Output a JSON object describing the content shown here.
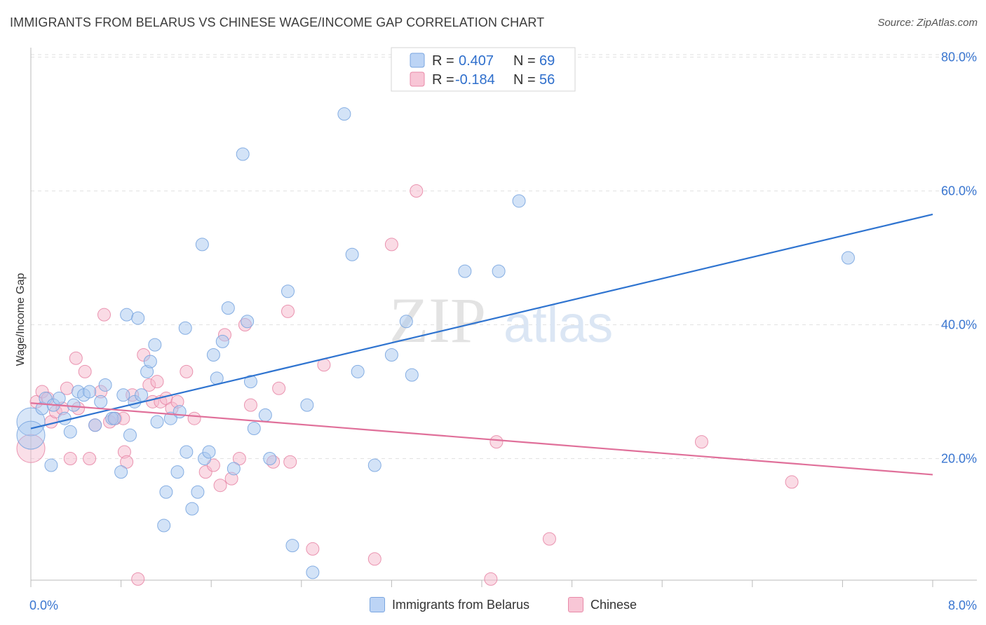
{
  "header": {
    "title": "IMMIGRANTS FROM BELARUS VS CHINESE WAGE/INCOME GAP CORRELATION CHART",
    "source": "Source: ZipAtlas.com"
  },
  "watermark": {
    "zip": "ZIP",
    "atlas": "atlas"
  },
  "legend": {
    "belarus": {
      "r_label": "R =",
      "r_value": "0.407",
      "n_label": "N =",
      "n_value": "69"
    },
    "chinese": {
      "r_label": "R =",
      "r_value": "-0.184",
      "n_label": "N =",
      "n_value": "56"
    }
  },
  "bottom_legend": {
    "belarus": "Immigrants from Belarus",
    "chinese": "Chinese"
  },
  "colors": {
    "belarus_fill": "#a8c8f0",
    "belarus_stroke": "#7aa6e0",
    "belarus_line": "#2f74d0",
    "chinese_fill": "#f5b8cc",
    "chinese_stroke": "#e88aa8",
    "chinese_line": "#e0709a",
    "tick_text": "#3a76d0"
  },
  "chart_data": {
    "type": "scatter",
    "title": "IMMIGRANTS FROM BELARUS VS CHINESE WAGE/INCOME GAP CORRELATION CHART",
    "xlabel": "",
    "ylabel": "Wage/Income Gap",
    "xlim": [
      0,
      8
    ],
    "ylim": [
      0,
      82
    ],
    "x_tick_labels": [
      "0.0%",
      "8.0%"
    ],
    "y_ticks": [
      20,
      40,
      60,
      80
    ],
    "y_tick_labels": [
      "20.0%",
      "40.0%",
      "60.0%",
      "80.0%"
    ],
    "grid": true,
    "series": [
      {
        "name": "Immigrants from Belarus",
        "trend": {
          "x": [
            0.0,
            8.0
          ],
          "y": [
            24.5,
            56.5
          ]
        },
        "points": [
          {
            "x": 0.0,
            "y": 25.5,
            "big": true
          },
          {
            "x": 0.0,
            "y": 23.5,
            "big": true
          },
          {
            "x": 0.1,
            "y": 27.5
          },
          {
            "x": 0.13,
            "y": 29.0
          },
          {
            "x": 0.18,
            "y": 19.0
          },
          {
            "x": 0.2,
            "y": 28.0
          },
          {
            "x": 0.25,
            "y": 29.0
          },
          {
            "x": 0.3,
            "y": 26.0
          },
          {
            "x": 0.35,
            "y": 24.0
          },
          {
            "x": 0.38,
            "y": 28.0
          },
          {
            "x": 0.42,
            "y": 30.0
          },
          {
            "x": 0.47,
            "y": 29.5
          },
          {
            "x": 0.52,
            "y": 30.0
          },
          {
            "x": 0.57,
            "y": 25.0
          },
          {
            "x": 0.62,
            "y": 28.5
          },
          {
            "x": 0.66,
            "y": 31.0
          },
          {
            "x": 0.72,
            "y": 26.0
          },
          {
            "x": 0.74,
            "y": 26.0
          },
          {
            "x": 0.8,
            "y": 18.0
          },
          {
            "x": 0.82,
            "y": 29.5
          },
          {
            "x": 0.85,
            "y": 41.5
          },
          {
            "x": 0.88,
            "y": 23.5
          },
          {
            "x": 0.92,
            "y": 28.5
          },
          {
            "x": 0.95,
            "y": 41.0
          },
          {
            "x": 0.98,
            "y": 29.5
          },
          {
            "x": 1.03,
            "y": 33.0
          },
          {
            "x": 1.06,
            "y": 34.5
          },
          {
            "x": 1.1,
            "y": 37.0
          },
          {
            "x": 1.12,
            "y": 25.5
          },
          {
            "x": 1.18,
            "y": 10.0
          },
          {
            "x": 1.2,
            "y": 15.0
          },
          {
            "x": 1.24,
            "y": 26.0
          },
          {
            "x": 1.3,
            "y": 18.0
          },
          {
            "x": 1.32,
            "y": 27.0
          },
          {
            "x": 1.37,
            "y": 39.5
          },
          {
            "x": 1.38,
            "y": 21.0
          },
          {
            "x": 1.43,
            "y": 12.5
          },
          {
            "x": 1.48,
            "y": 15.0
          },
          {
            "x": 1.52,
            "y": 52.0
          },
          {
            "x": 1.54,
            "y": 20.0
          },
          {
            "x": 1.58,
            "y": 21.0
          },
          {
            "x": 1.62,
            "y": 35.5
          },
          {
            "x": 1.65,
            "y": 32.0
          },
          {
            "x": 1.7,
            "y": 37.5
          },
          {
            "x": 1.75,
            "y": 42.5
          },
          {
            "x": 1.8,
            "y": 18.5
          },
          {
            "x": 1.88,
            "y": 65.5
          },
          {
            "x": 1.92,
            "y": 40.5
          },
          {
            "x": 1.95,
            "y": 31.5
          },
          {
            "x": 1.98,
            "y": 24.5
          },
          {
            "x": 2.08,
            "y": 26.5
          },
          {
            "x": 2.12,
            "y": 20.0
          },
          {
            "x": 2.28,
            "y": 45.0
          },
          {
            "x": 2.32,
            "y": 7.0
          },
          {
            "x": 2.45,
            "y": 28.0
          },
          {
            "x": 2.5,
            "y": 3.0
          },
          {
            "x": 2.78,
            "y": 71.5
          },
          {
            "x": 2.85,
            "y": 50.5
          },
          {
            "x": 2.9,
            "y": 33.0
          },
          {
            "x": 3.05,
            "y": 19.0
          },
          {
            "x": 3.2,
            "y": 35.5
          },
          {
            "x": 3.33,
            "y": 40.5
          },
          {
            "x": 3.38,
            "y": 32.5
          },
          {
            "x": 3.85,
            "y": 48.0
          },
          {
            "x": 4.15,
            "y": 48.0
          },
          {
            "x": 4.33,
            "y": 58.5
          },
          {
            "x": 7.25,
            "y": 50.0
          }
        ]
      },
      {
        "name": "Chinese",
        "trend": {
          "x": [
            0.0,
            8.0
          ],
          "y": [
            28.3,
            17.6
          ]
        },
        "points": [
          {
            "x": 0.0,
            "y": 21.5,
            "big": true
          },
          {
            "x": 0.05,
            "y": 28.5
          },
          {
            "x": 0.1,
            "y": 30.0
          },
          {
            "x": 0.15,
            "y": 29.0
          },
          {
            "x": 0.18,
            "y": 25.5
          },
          {
            "x": 0.22,
            "y": 27.0
          },
          {
            "x": 0.28,
            "y": 27.5
          },
          {
            "x": 0.32,
            "y": 30.5
          },
          {
            "x": 0.35,
            "y": 20.0
          },
          {
            "x": 0.4,
            "y": 35.0
          },
          {
            "x": 0.42,
            "y": 27.5
          },
          {
            "x": 0.48,
            "y": 33.0
          },
          {
            "x": 0.52,
            "y": 20.0
          },
          {
            "x": 0.57,
            "y": 25.0
          },
          {
            "x": 0.62,
            "y": 30.0
          },
          {
            "x": 0.65,
            "y": 41.5
          },
          {
            "x": 0.7,
            "y": 25.5
          },
          {
            "x": 0.75,
            "y": 26.0
          },
          {
            "x": 0.82,
            "y": 26.0
          },
          {
            "x": 0.83,
            "y": 21.0
          },
          {
            "x": 0.85,
            "y": 19.5
          },
          {
            "x": 0.9,
            "y": 29.5
          },
          {
            "x": 0.95,
            "y": 2.0
          },
          {
            "x": 1.0,
            "y": 35.5
          },
          {
            "x": 1.05,
            "y": 31.0
          },
          {
            "x": 1.08,
            "y": 28.5
          },
          {
            "x": 1.12,
            "y": 31.5
          },
          {
            "x": 1.15,
            "y": 28.5
          },
          {
            "x": 1.2,
            "y": 29.0
          },
          {
            "x": 1.25,
            "y": 27.5
          },
          {
            "x": 1.3,
            "y": 28.5
          },
          {
            "x": 1.38,
            "y": 33.0
          },
          {
            "x": 1.45,
            "y": 26.0
          },
          {
            "x": 1.55,
            "y": 18.0
          },
          {
            "x": 1.62,
            "y": 19.0
          },
          {
            "x": 1.68,
            "y": 16.0
          },
          {
            "x": 1.72,
            "y": 38.5
          },
          {
            "x": 1.78,
            "y": 17.0
          },
          {
            "x": 1.85,
            "y": 20.0
          },
          {
            "x": 1.9,
            "y": 40.0
          },
          {
            "x": 1.95,
            "y": 28.0
          },
          {
            "x": 2.15,
            "y": 19.5
          },
          {
            "x": 2.2,
            "y": 30.5
          },
          {
            "x": 2.28,
            "y": 42.0
          },
          {
            "x": 2.3,
            "y": 19.5
          },
          {
            "x": 2.5,
            "y": 6.5
          },
          {
            "x": 2.6,
            "y": 34.0
          },
          {
            "x": 3.05,
            "y": 5.0
          },
          {
            "x": 3.2,
            "y": 52.0
          },
          {
            "x": 3.42,
            "y": 60.0
          },
          {
            "x": 4.08,
            "y": 2.0
          },
          {
            "x": 4.13,
            "y": 22.5
          },
          {
            "x": 4.6,
            "y": 8.0
          },
          {
            "x": 5.95,
            "y": 22.5
          },
          {
            "x": 6.75,
            "y": 16.5
          }
        ]
      }
    ]
  }
}
